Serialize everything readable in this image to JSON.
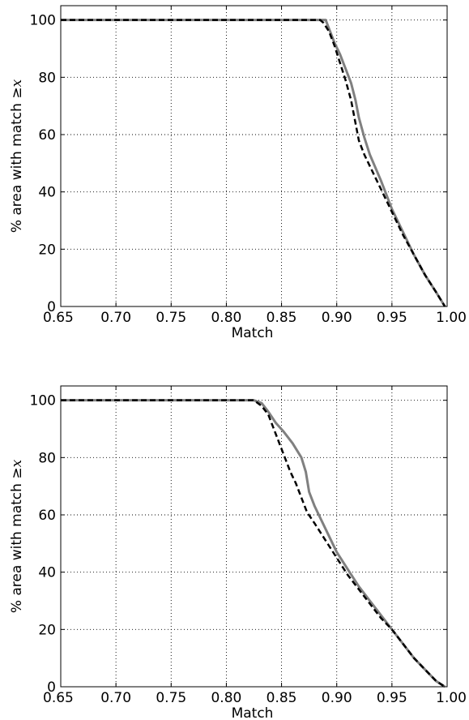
{
  "chart_data": [
    {
      "type": "line",
      "xlabel": "Match",
      "ylabel_prefix": "% area with match ≥",
      "ylabel_var": "x",
      "xlim": [
        0.65,
        1.0
      ],
      "ylim": [
        0,
        105
      ],
      "x_ticks": [
        "0.65",
        "0.70",
        "0.75",
        "0.80",
        "0.85",
        "0.90",
        "0.95",
        "1.00"
      ],
      "y_ticks": [
        "0",
        "20",
        "40",
        "60",
        "80",
        "100"
      ],
      "grid": true,
      "series": [
        {
          "style": "solid",
          "color": "#808080",
          "points": [
            [
              0.65,
              100
            ],
            [
              0.885,
              100
            ],
            [
              0.89,
              100
            ],
            [
              0.893,
              97
            ],
            [
              0.898,
              92
            ],
            [
              0.903,
              88
            ],
            [
              0.908,
              83
            ],
            [
              0.913,
              78
            ],
            [
              0.917,
              72
            ],
            [
              0.92,
              66
            ],
            [
              0.925,
              59
            ],
            [
              0.93,
              53
            ],
            [
              0.94,
              44
            ],
            [
              0.95,
              34
            ],
            [
              0.96,
              26
            ],
            [
              0.97,
              18
            ],
            [
              0.98,
              11
            ],
            [
              0.99,
              5
            ],
            [
              0.998,
              0
            ]
          ]
        },
        {
          "style": "dashed",
          "color": "#000000",
          "points": [
            [
              0.65,
              100
            ],
            [
              0.885,
              100
            ],
            [
              0.888,
              99
            ],
            [
              0.893,
              96
            ],
            [
              0.898,
              91
            ],
            [
              0.903,
              85
            ],
            [
              0.908,
              79
            ],
            [
              0.913,
              72
            ],
            [
              0.917,
              64
            ],
            [
              0.92,
              58
            ],
            [
              0.925,
              53
            ],
            [
              0.93,
              49
            ],
            [
              0.94,
              41
            ],
            [
              0.95,
              33
            ],
            [
              0.96,
              25
            ],
            [
              0.97,
              18
            ],
            [
              0.98,
              11
            ],
            [
              0.99,
              5
            ],
            [
              0.998,
              0
            ]
          ]
        }
      ]
    },
    {
      "type": "line",
      "xlabel": "Match",
      "ylabel_prefix": "% area with match ≥",
      "ylabel_var": "x",
      "xlim": [
        0.65,
        1.0
      ],
      "ylim": [
        0,
        105
      ],
      "x_ticks": [
        "0.65",
        "0.70",
        "0.75",
        "0.80",
        "0.85",
        "0.90",
        "0.95",
        "1.00"
      ],
      "y_ticks": [
        "0",
        "20",
        "40",
        "60",
        "80",
        "100"
      ],
      "grid": true,
      "series": [
        {
          "style": "solid",
          "color": "#808080",
          "points": [
            [
              0.65,
              100
            ],
            [
              0.825,
              100
            ],
            [
              0.832,
              99
            ],
            [
              0.838,
              96
            ],
            [
              0.845,
              92
            ],
            [
              0.852,
              89
            ],
            [
              0.86,
              85
            ],
            [
              0.868,
              80
            ],
            [
              0.872,
              75
            ],
            [
              0.875,
              68
            ],
            [
              0.88,
              63
            ],
            [
              0.89,
              55
            ],
            [
              0.9,
              47
            ],
            [
              0.91,
              41
            ],
            [
              0.92,
              35
            ],
            [
              0.93,
              30
            ],
            [
              0.94,
              25
            ],
            [
              0.95,
              20
            ],
            [
              0.96,
              15
            ],
            [
              0.97,
              10
            ],
            [
              0.98,
              6
            ],
            [
              0.99,
              2
            ],
            [
              0.998,
              0
            ]
          ]
        },
        {
          "style": "dashed",
          "color": "#000000",
          "points": [
            [
              0.65,
              100
            ],
            [
              0.825,
              100
            ],
            [
              0.832,
              98
            ],
            [
              0.838,
              95
            ],
            [
              0.843,
              90
            ],
            [
              0.848,
              85
            ],
            [
              0.853,
              80
            ],
            [
              0.858,
              75
            ],
            [
              0.863,
              71
            ],
            [
              0.868,
              66
            ],
            [
              0.873,
              61
            ],
            [
              0.88,
              57
            ],
            [
              0.89,
              51
            ],
            [
              0.9,
              45
            ],
            [
              0.91,
              39
            ],
            [
              0.92,
              34
            ],
            [
              0.93,
              29
            ],
            [
              0.94,
              24
            ],
            [
              0.95,
              20
            ],
            [
              0.96,
              15
            ],
            [
              0.97,
              10
            ],
            [
              0.98,
              6
            ],
            [
              0.99,
              2
            ],
            [
              0.998,
              0
            ]
          ]
        }
      ]
    }
  ]
}
